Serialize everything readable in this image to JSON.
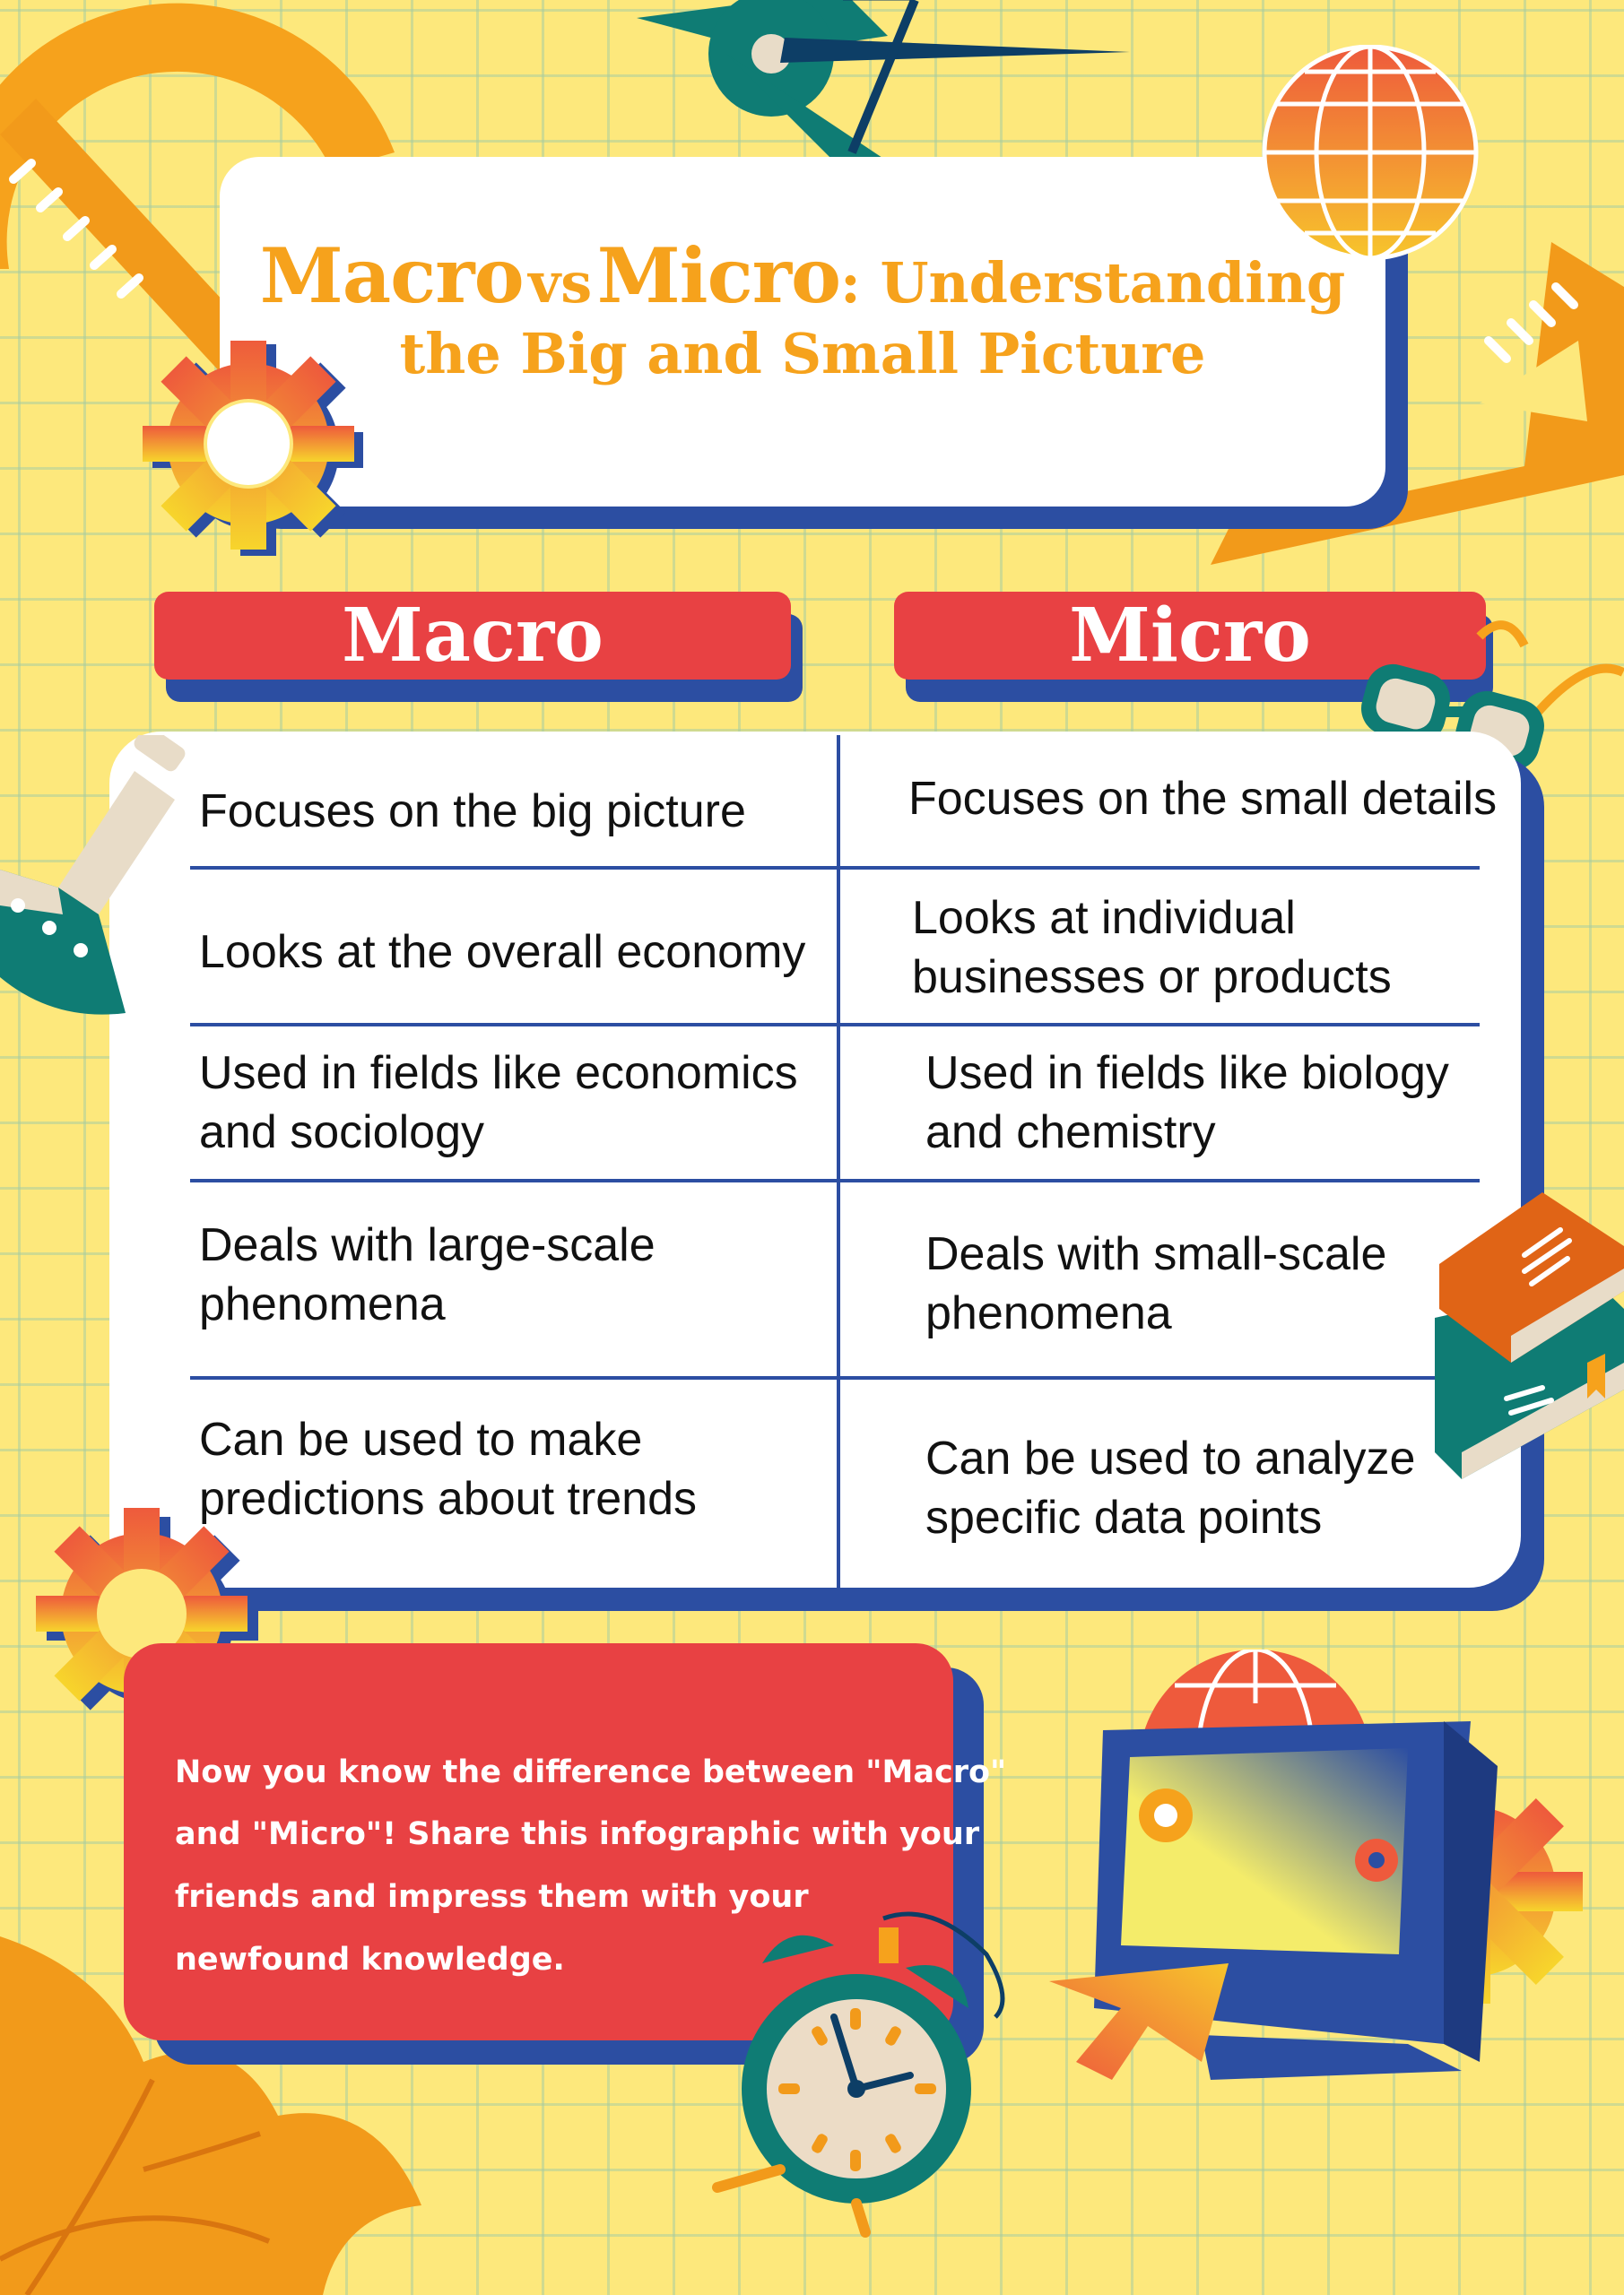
{
  "title": {
    "word_macro": "Macro",
    "word_vs": "vs",
    "word_micro": "Micro",
    "rest_line1": ": Understanding",
    "line2": "the Big and Small Picture"
  },
  "columns": {
    "left_header": "Macro",
    "right_header": "Micro"
  },
  "rows": [
    {
      "macro": [
        "Focuses on the big picture"
      ],
      "micro": [
        "Focuses on the small details"
      ]
    },
    {
      "macro": [
        "Looks at the overall economy"
      ],
      "micro": [
        "Looks at individual",
        "businesses or products"
      ]
    },
    {
      "macro": [
        "Used in fields like economics",
        "and sociology"
      ],
      "micro": [
        "Used in fields like biology",
        "and chemistry"
      ]
    },
    {
      "macro": [
        "Deals with large-scale",
        "phenomena"
      ],
      "micro": [
        "Deals with small-scale",
        "phenomena"
      ]
    },
    {
      "macro": [
        "Can be used to make",
        "predictions about trends"
      ],
      "micro": [
        "Can be used to analyze",
        "specific data points"
      ]
    }
  ],
  "note": {
    "lines": [
      "Now you know the difference between \"Macro\"",
      "and \"Micro\"! Share this infographic with your",
      " friends and impress them with your",
      "newfound knowledge."
    ]
  },
  "colors": {
    "background": "#fde87c",
    "accent_red": "#e84143",
    "accent_blue": "#2c4ea2",
    "title_orange": "#f6a21c",
    "card_white": "#ffffff"
  },
  "icons": [
    "protractor-icon",
    "scissors-icon",
    "globe-icon",
    "ruler-icon",
    "gear-icon",
    "flask-icon",
    "glasses-icon",
    "books-icon",
    "alarm-clock-icon",
    "computer-icon",
    "cursor-arrow-icon",
    "leaf-icon",
    "set-square-icon"
  ]
}
